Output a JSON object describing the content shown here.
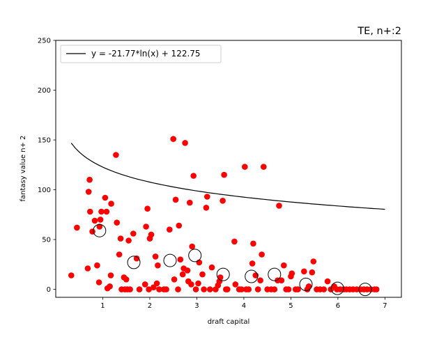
{
  "chart_data": {
    "type": "scatter",
    "title": "TE, n+:2",
    "xlabel": "draft capital",
    "ylabel": "fantasy value n+ 2",
    "xlim": [
      0.0,
      7.35
    ],
    "ylim": [
      -8,
      250
    ],
    "xticks": [
      1,
      2,
      3,
      4,
      5,
      6,
      7
    ],
    "yticks": [
      0,
      50,
      100,
      150,
      200,
      250
    ],
    "grid": false,
    "legend_position": "top-left",
    "colors": {
      "points": "#ff0000",
      "fit_line": "#000000",
      "bin_means": "#000000"
    },
    "fit": {
      "label": "y = -21.77*ln(x) + 122.75",
      "a": -21.77,
      "b": 122.75,
      "x_range": [
        0.33,
        7.0
      ]
    },
    "points": [
      [
        0.33,
        14
      ],
      [
        0.45,
        62
      ],
      [
        0.68,
        21
      ],
      [
        0.7,
        98
      ],
      [
        0.72,
        110
      ],
      [
        0.73,
        78
      ],
      [
        0.78,
        58
      ],
      [
        0.83,
        69
      ],
      [
        0.88,
        24
      ],
      [
        0.92,
        7
      ],
      [
        0.93,
        63
      ],
      [
        0.95,
        70
      ],
      [
        0.97,
        78
      ],
      [
        1.05,
        92
      ],
      [
        1.08,
        78
      ],
      [
        1.1,
        1
      ],
      [
        1.15,
        3
      ],
      [
        1.17,
        14
      ],
      [
        1.18,
        86
      ],
      [
        1.28,
        135
      ],
      [
        1.3,
        67
      ],
      [
        1.35,
        35
      ],
      [
        1.38,
        51
      ],
      [
        1.4,
        0
      ],
      [
        1.45,
        12
      ],
      [
        1.47,
        0
      ],
      [
        1.5,
        10
      ],
      [
        1.52,
        0
      ],
      [
        1.55,
        49
      ],
      [
        1.58,
        0
      ],
      [
        1.65,
        56
      ],
      [
        1.72,
        31
      ],
      [
        1.78,
        0
      ],
      [
        1.9,
        5
      ],
      [
        1.92,
        63
      ],
      [
        1.95,
        81
      ],
      [
        1.98,
        0
      ],
      [
        2.0,
        51
      ],
      [
        2.03,
        55
      ],
      [
        2.08,
        2
      ],
      [
        2.12,
        33
      ],
      [
        2.15,
        6
      ],
      [
        2.17,
        24
      ],
      [
        2.2,
        0
      ],
      [
        2.3,
        0
      ],
      [
        2.35,
        0
      ],
      [
        2.42,
        60
      ],
      [
        2.5,
        151
      ],
      [
        2.52,
        10
      ],
      [
        2.55,
        90
      ],
      [
        2.6,
        0
      ],
      [
        2.62,
        64
      ],
      [
        2.65,
        30
      ],
      [
        2.7,
        15
      ],
      [
        2.72,
        21
      ],
      [
        2.75,
        147
      ],
      [
        2.8,
        19
      ],
      [
        2.82,
        8
      ],
      [
        2.85,
        87
      ],
      [
        2.88,
        5
      ],
      [
        2.9,
        43
      ],
      [
        2.93,
        114
      ],
      [
        2.98,
        0
      ],
      [
        3.03,
        6
      ],
      [
        3.05,
        27
      ],
      [
        3.12,
        15
      ],
      [
        3.15,
        0
      ],
      [
        3.2,
        82
      ],
      [
        3.22,
        93
      ],
      [
        3.28,
        0
      ],
      [
        3.32,
        22
      ],
      [
        3.4,
        0
      ],
      [
        3.45,
        4
      ],
      [
        3.48,
        8
      ],
      [
        3.5,
        12
      ],
      [
        3.55,
        89
      ],
      [
        3.58,
        115
      ],
      [
        3.62,
        0
      ],
      [
        3.65,
        0
      ],
      [
        3.8,
        48
      ],
      [
        3.82,
        5
      ],
      [
        3.9,
        0
      ],
      [
        3.95,
        0
      ],
      [
        4.02,
        123
      ],
      [
        4.05,
        0
      ],
      [
        4.1,
        0
      ],
      [
        4.18,
        26
      ],
      [
        4.2,
        46
      ],
      [
        4.25,
        14
      ],
      [
        4.3,
        0
      ],
      [
        4.35,
        9
      ],
      [
        4.38,
        35
      ],
      [
        4.42,
        123
      ],
      [
        4.5,
        0
      ],
      [
        4.58,
        0
      ],
      [
        4.65,
        0
      ],
      [
        4.72,
        9
      ],
      [
        4.75,
        84
      ],
      [
        4.8,
        9
      ],
      [
        4.85,
        24
      ],
      [
        4.9,
        0
      ],
      [
        4.95,
        0
      ],
      [
        5.0,
        13
      ],
      [
        5.02,
        16
      ],
      [
        5.1,
        0
      ],
      [
        5.15,
        0
      ],
      [
        5.28,
        18
      ],
      [
        5.35,
        0
      ],
      [
        5.38,
        3
      ],
      [
        5.45,
        17
      ],
      [
        5.48,
        28
      ],
      [
        5.55,
        0
      ],
      [
        5.62,
        0
      ],
      [
        5.7,
        0
      ],
      [
        5.78,
        8
      ],
      [
        5.85,
        0
      ],
      [
        5.92,
        3
      ],
      [
        5.98,
        0
      ],
      [
        6.05,
        0
      ],
      [
        6.12,
        0
      ],
      [
        6.18,
        0
      ],
      [
        6.25,
        0
      ],
      [
        6.32,
        0
      ],
      [
        6.4,
        0
      ],
      [
        6.48,
        0
      ],
      [
        6.55,
        0
      ],
      [
        6.62,
        0
      ],
      [
        6.7,
        0
      ],
      [
        6.78,
        0
      ],
      [
        6.82,
        0
      ]
    ],
    "bin_means": [
      [
        0.93,
        59
      ],
      [
        1.66,
        27
      ],
      [
        2.43,
        29
      ],
      [
        2.96,
        34
      ],
      [
        3.56,
        15
      ],
      [
        4.16,
        13
      ],
      [
        4.65,
        15
      ],
      [
        5.32,
        5
      ],
      [
        5.99,
        1
      ],
      [
        6.58,
        0
      ]
    ]
  }
}
